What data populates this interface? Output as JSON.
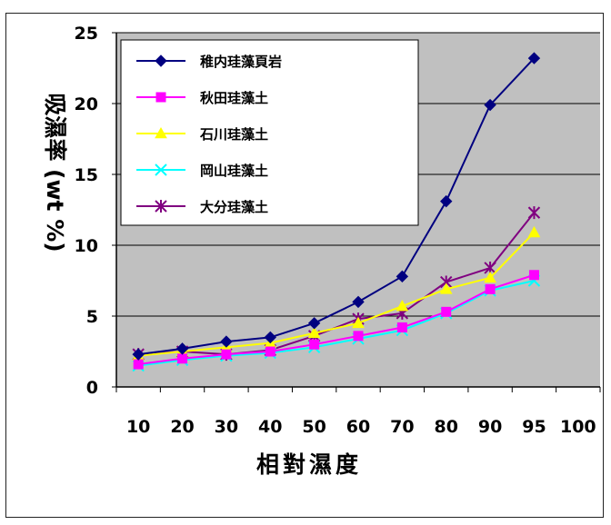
{
  "chart_data": {
    "type": "line",
    "title": "",
    "xlabel": "相對濕度",
    "ylabel": "吸濕率 (wt %)",
    "x": [
      "10",
      "20",
      "30",
      "40",
      "50",
      "60",
      "70",
      "80",
      "90",
      "95"
    ],
    "x_ticks": [
      "10",
      "20",
      "30",
      "40",
      "50",
      "60",
      "70",
      "80",
      "90",
      "95",
      "100"
    ],
    "y_ticks": [
      "0",
      "5",
      "10",
      "15",
      "20",
      "25"
    ],
    "ylim": [
      0,
      25
    ],
    "grid": true,
    "legend_position": "top-left",
    "plot_background": "#c0c0c0",
    "series": [
      {
        "name": "稚内珪藻頁岩",
        "color": "#000080",
        "marker": "diamond",
        "values": [
          2.3,
          2.7,
          3.2,
          3.5,
          4.5,
          6.0,
          7.8,
          13.1,
          19.9,
          23.2
        ]
      },
      {
        "name": "秋田珪藻土",
        "color": "#ff00ff",
        "marker": "square",
        "values": [
          1.6,
          2.0,
          2.3,
          2.5,
          3.0,
          3.6,
          4.2,
          5.3,
          6.9,
          7.9
        ]
      },
      {
        "name": "石川珪藻土",
        "color": "#ffff00",
        "marker": "triangle",
        "values": [
          2.2,
          2.5,
          2.8,
          3.1,
          3.8,
          4.5,
          5.7,
          6.9,
          7.7,
          10.9
        ]
      },
      {
        "name": "岡山珪藻土",
        "color": "#00ffff",
        "marker": "x",
        "values": [
          1.5,
          1.9,
          2.2,
          2.4,
          2.8,
          3.4,
          4.0,
          5.2,
          6.8,
          7.5
        ]
      },
      {
        "name": "大分珪藻土",
        "color": "#800080",
        "marker": "asterisk",
        "values": [
          2.3,
          2.5,
          2.3,
          2.6,
          3.6,
          4.8,
          5.2,
          7.4,
          8.4,
          12.3
        ]
      }
    ]
  }
}
